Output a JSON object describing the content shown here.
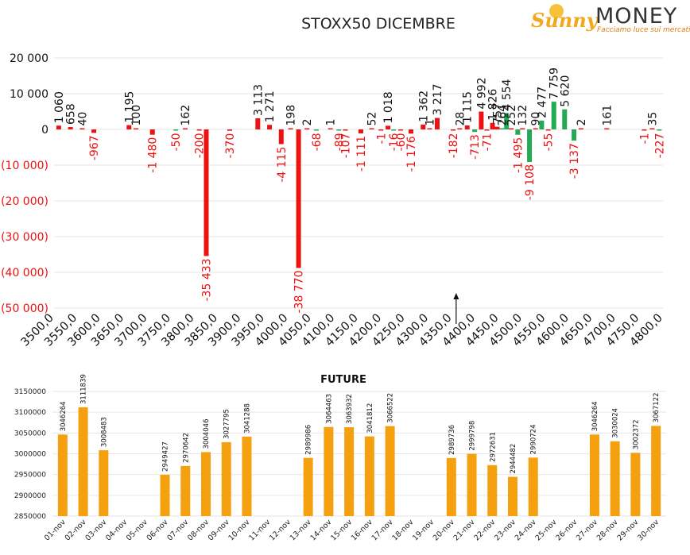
{
  "logo": {
    "part1": "Sunny",
    "part2": "MONEY",
    "tagline": "Facciamo luce sui mercati"
  },
  "colors": {
    "negative": "#ee1111",
    "positive": "#22aa55",
    "future": "#f5a00f",
    "grid": "#e6e6e6"
  },
  "chart_data": [
    {
      "type": "bar",
      "title": "STOXX50 DICEMBRE",
      "y_tick_labels": [
        "20 000",
        "10 000",
        "0",
        "(10 000)",
        "(20 000)",
        "(30 000)",
        "(40 000)",
        "(50 000)"
      ],
      "y_ticks": [
        20000,
        10000,
        0,
        -10000,
        -20000,
        -30000,
        -40000,
        -50000
      ],
      "ylim": [
        -50000,
        20000
      ],
      "x_tick_labels": [
        "3500,0",
        "3550,0",
        "3600,0",
        "3650,0",
        "3700,0",
        "3750,0",
        "3800,0",
        "3850,0",
        "3900,0",
        "3950,0",
        "4000,0",
        "4050,0",
        "4100,0",
        "4150,0",
        "4200,0",
        "4250,0",
        "4300,0",
        "4350,0",
        "4400,0",
        "4450,0",
        "4500,0",
        "4550,0",
        "4600,0",
        "4650,0",
        "4700,0",
        "4750,0",
        "4800,0"
      ],
      "x_ticks": [
        3500,
        3550,
        3600,
        3650,
        3700,
        3750,
        3800,
        3850,
        3900,
        3950,
        4000,
        4050,
        4100,
        4150,
        4200,
        4250,
        4300,
        4350,
        4400,
        4450,
        4500,
        4550,
        4600,
        4650,
        4700,
        4750,
        4800
      ],
      "xlim": [
        3500,
        4800
      ],
      "grid": true,
      "marker": {
        "x": 4350,
        "note": "arrow"
      },
      "bars": [
        {
          "x": 3510,
          "value": 1060,
          "label": "1 060",
          "color": "red"
        },
        {
          "x": 3535,
          "value": 658,
          "label": "658",
          "color": "red"
        },
        {
          "x": 3560,
          "value": 40,
          "label": "40",
          "color": "red"
        },
        {
          "x": 3585,
          "value": -967,
          "label": "-967",
          "color": "red"
        },
        {
          "x": 3660,
          "value": 1195,
          "label": "1 195",
          "color": "red"
        },
        {
          "x": 3675,
          "value": 100,
          "label": "100",
          "color": "red"
        },
        {
          "x": 3710,
          "value": -1480,
          "label": "-1 480",
          "color": "red"
        },
        {
          "x": 3760,
          "value": -50,
          "label": "-50",
          "color": "green"
        },
        {
          "x": 3780,
          "value": 162,
          "label": "162",
          "color": "red"
        },
        {
          "x": 3810,
          "value": -200,
          "label": "-200",
          "color": "red"
        },
        {
          "x": 3825,
          "value": -35433,
          "label": "-35 433",
          "color": "red"
        },
        {
          "x": 3875,
          "value": -370,
          "label": "-370",
          "color": "red"
        },
        {
          "x": 3935,
          "value": 3113,
          "label": "3 113",
          "color": "red"
        },
        {
          "x": 3960,
          "value": 1271,
          "label": "1 271",
          "color": "red"
        },
        {
          "x": 3985,
          "value": -4115,
          "label": "-4 115",
          "color": "red"
        },
        {
          "x": 4005,
          "value": 198,
          "label": "198",
          "color": "red"
        },
        {
          "x": 4022,
          "value": -38770,
          "label": "-38 770",
          "color": "red"
        },
        {
          "x": 4040,
          "value": 2,
          "label": "2",
          "color": "red"
        },
        {
          "x": 4060,
          "value": -68,
          "label": "-68",
          "color": "green"
        },
        {
          "x": 4090,
          "value": 1,
          "label": "1",
          "color": "red"
        },
        {
          "x": 4108,
          "value": -89,
          "label": "-89",
          "color": "green"
        },
        {
          "x": 4122,
          "value": -107,
          "label": "-107",
          "color": "red"
        },
        {
          "x": 4155,
          "value": -1111,
          "label": "-1 111",
          "color": "red"
        },
        {
          "x": 4178,
          "value": 52,
          "label": "52",
          "color": "red"
        },
        {
          "x": 4198,
          "value": -1,
          "label": "-1",
          "color": "red"
        },
        {
          "x": 4213,
          "value": 1018,
          "label": "1 018",
          "color": "red"
        },
        {
          "x": 4225,
          "value": -16,
          "label": "-16",
          "color": "green"
        },
        {
          "x": 4240,
          "value": -60,
          "label": "-60",
          "color": "red"
        },
        {
          "x": 4262,
          "value": -1176,
          "label": "-1 176",
          "color": "red"
        },
        {
          "x": 4288,
          "value": 1362,
          "label": "1 362",
          "color": "red"
        },
        {
          "x": 4302,
          "value": 1,
          "label": "1",
          "color": "red"
        },
        {
          "x": 4318,
          "value": 3217,
          "label": "3 217",
          "color": "red"
        },
        {
          "x": 4352,
          "value": -182,
          "label": "-182",
          "color": "red"
        },
        {
          "x": 4366,
          "value": 28,
          "label": "28",
          "color": "red"
        },
        {
          "x": 4382,
          "value": 1115,
          "label": "1 115",
          "color": "red"
        },
        {
          "x": 4398,
          "value": -713,
          "label": "-713",
          "color": "green"
        },
        {
          "x": 4412,
          "value": 4992,
          "label": "4 992",
          "color": "red"
        },
        {
          "x": 4424,
          "value": -71,
          "label": "-71",
          "color": "red"
        },
        {
          "x": 4436,
          "value": 1826,
          "label": "1 826",
          "color": "red"
        },
        {
          "x": 4446,
          "value": 757,
          "label": "757",
          "color": "red"
        },
        {
          "x": 4456,
          "value": 264,
          "label": "264",
          "color": "green"
        },
        {
          "x": 4466,
          "value": 4554,
          "label": "4 554",
          "color": "green"
        },
        {
          "x": 4476,
          "value": 252,
          "label": "252",
          "color": "red"
        },
        {
          "x": 4490,
          "value": -1495,
          "label": "-1 495",
          "color": "green"
        },
        {
          "x": 4500,
          "value": 132,
          "label": "132",
          "color": "red"
        },
        {
          "x": 4515,
          "value": -9108,
          "label": "-9 108",
          "color": "green"
        },
        {
          "x": 4528,
          "value": 90,
          "label": "90",
          "color": "red"
        },
        {
          "x": 4541,
          "value": 2477,
          "label": "2 477",
          "color": "green"
        },
        {
          "x": 4555,
          "value": -55,
          "label": "-55",
          "color": "red"
        },
        {
          "x": 4567,
          "value": 7759,
          "label": "7 759",
          "color": "green"
        },
        {
          "x": 4590,
          "value": 5620,
          "label": "5 620",
          "color": "green"
        },
        {
          "x": 4610,
          "value": -3137,
          "label": "-3 137",
          "color": "green"
        },
        {
          "x": 4625,
          "value": 2,
          "label": "2",
          "color": "red"
        },
        {
          "x": 4680,
          "value": 161,
          "label": "161",
          "color": "red"
        },
        {
          "x": 4760,
          "value": -1,
          "label": "-1",
          "color": "red"
        },
        {
          "x": 4777,
          "value": 35,
          "label": "35",
          "color": "red"
        },
        {
          "x": 4792,
          "value": -227,
          "label": "-227",
          "color": "green"
        }
      ]
    },
    {
      "type": "bar",
      "title": "FUTURE",
      "y_tick_labels": [
        "3150000",
        "3100000",
        "3050000",
        "3000000",
        "2950000",
        "2900000",
        "2850000"
      ],
      "y_ticks": [
        3150000,
        3100000,
        3050000,
        3000000,
        2950000,
        2900000,
        2850000
      ],
      "ylim": [
        2850000,
        3150000
      ],
      "categories": [
        "01-nov",
        "02-nov",
        "03-nov",
        "04-nov",
        "05-nov",
        "06-nov",
        "07-nov",
        "08-nov",
        "09-nov",
        "10-nov",
        "11-nov",
        "12-nov",
        "13-nov",
        "14-nov",
        "15-nov",
        "16-nov",
        "17-nov",
        "18-nov",
        "19-nov",
        "20-nov",
        "21-nov",
        "22-nov",
        "23-nov",
        "24-nov",
        "25-nov",
        "26-nov",
        "27-nov",
        "28-nov",
        "29-nov",
        "30-nov"
      ],
      "values": [
        3046264,
        3111839,
        3008483,
        null,
        null,
        2949427,
        2970642,
        3004046,
        3027795,
        3041288,
        null,
        null,
        2989986,
        3064463,
        3063932,
        3041812,
        3066522,
        null,
        null,
        2989736,
        2999798,
        2972631,
        2944482,
        2990724,
        null,
        null,
        3046264,
        3030024,
        3002372,
        3067122
      ],
      "value_labels": [
        "3046264",
        "3111839",
        "3008483",
        "",
        "",
        "2949427",
        "2970642",
        "3004046",
        "3027795",
        "3041288",
        "",
        "",
        "2989986",
        "3064463",
        "3063932",
        "3041812",
        "3066522",
        "",
        "",
        "2989736",
        "2999798",
        "2972631",
        "2944482",
        "2990724",
        "",
        "",
        "3046264",
        "3030024",
        "3002372",
        "3067122"
      ]
    }
  ]
}
